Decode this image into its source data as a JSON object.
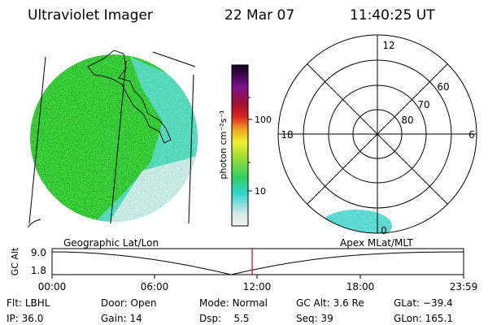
{
  "header": {
    "instrument": "Ultraviolet Imager",
    "date": "22 Mar 07",
    "time": "11:40:25 UT"
  },
  "colorbar": {
    "unit_label": "photon cm⁻²s⁻¹",
    "tick_labels": [
      "100",
      "10"
    ]
  },
  "polar": {
    "mlt_labels": {
      "top": "12",
      "left": "18",
      "right": "6",
      "bottom": "0"
    },
    "lat_labels": [
      "60",
      "70",
      "80"
    ]
  },
  "timeline": {
    "axis_title": "GC Alt",
    "y_max": "9.0",
    "y_min": "1.8",
    "left_caption": "Geographic Lat/Lon",
    "right_caption": "Apex MLat/MLT",
    "x_ticks": [
      "00:00",
      "06:00",
      "12:00",
      "18:00",
      "23:59"
    ],
    "current_time_marker": "11:40"
  },
  "status": {
    "flt_label": "Flt:",
    "flt_value": "LBHL",
    "ip_label": "IP:",
    "ip_value": "36.0",
    "door_label": "Door:",
    "door_value": "Open",
    "gain_label": "Gain:",
    "gain_value": "14",
    "mode_label": "Mode:",
    "mode_value": "Normal",
    "dsp_label": "Dsp:",
    "dsp_value": "5.5",
    "gcalt_label": "GC Alt:",
    "gcalt_value": "3.6 Re",
    "seq_label": "Seq:",
    "seq_value": "39",
    "glat_label": "GLat:",
    "glat_value": "−39.4",
    "glon_label": "GLon:",
    "glon_value": "165.1"
  },
  "colors": {
    "marker": "#e00000",
    "earth_green": "#3ad63a",
    "earth_cyan": "#5fe0d8",
    "earth_pale": "#d8eeee"
  }
}
